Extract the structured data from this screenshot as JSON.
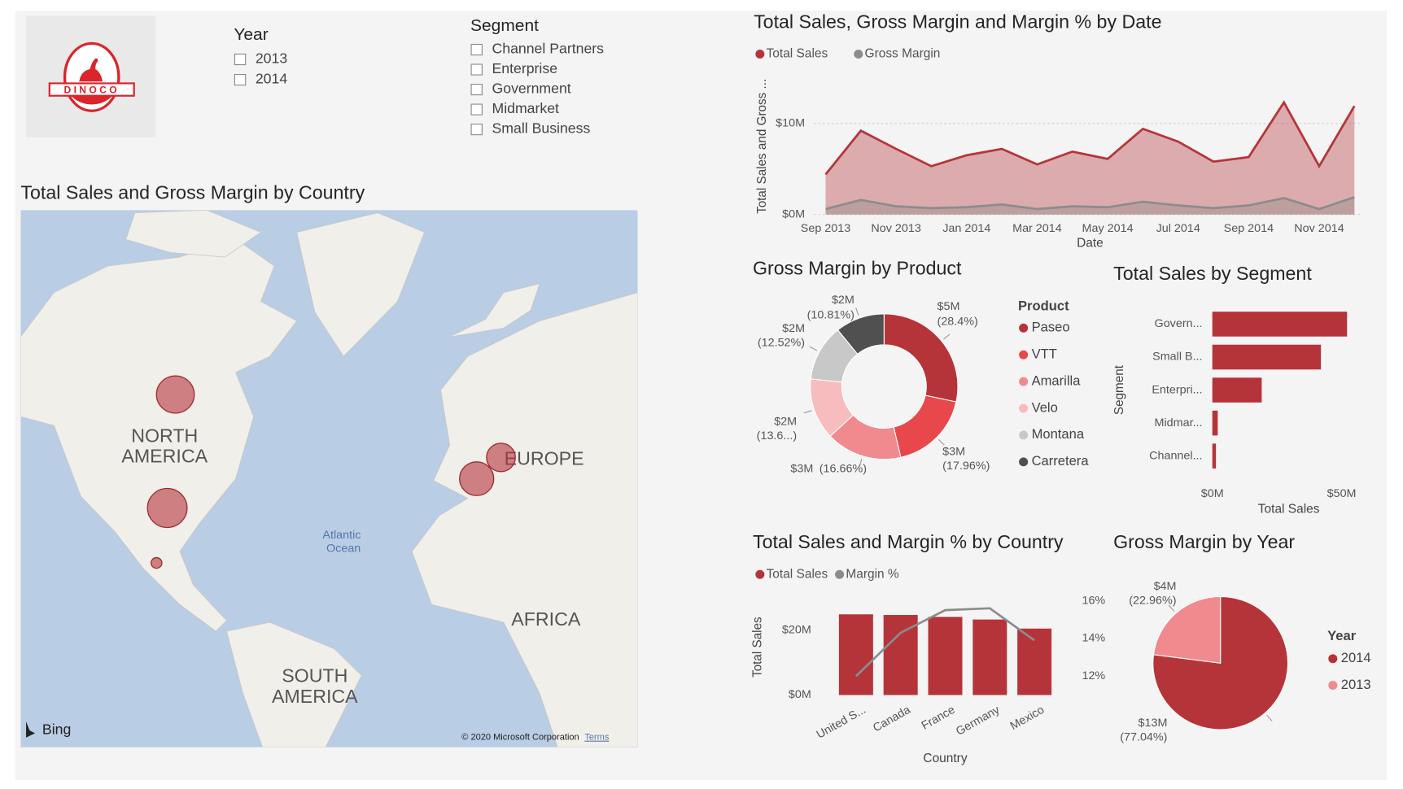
{
  "logo": {
    "text": "DINOCO"
  },
  "slicers": [
    {
      "title": "Year",
      "items": [
        "2013",
        "2014"
      ]
    },
    {
      "title": "Segment",
      "items": [
        "Channel Partners",
        "Enterprise",
        "Government",
        "Midmarket",
        "Small Business"
      ]
    }
  ],
  "map": {
    "title": "Total Sales and Gross Margin by Country",
    "regions": [
      [
        "NORTH",
        "AMERICA"
      ],
      [
        "EUROPE"
      ],
      [
        "AFRICA"
      ],
      [
        "SOUTH",
        "AMERICA"
      ]
    ],
    "ocean": [
      "Atlantic",
      "Ocean"
    ],
    "provider": "Bing",
    "copyright": "© 2020 Microsoft Corporation",
    "terms": "Terms"
  },
  "chart_data": [
    {
      "type": "area",
      "title": "Total Sales, Gross Margin and Margin % by Date",
      "xlabel": "Date",
      "ylabel": "Total Sales and Gross ...",
      "x": [
        "2013-09",
        "2013-10",
        "2013-11",
        "2013-12",
        "2014-01",
        "2014-02",
        "2014-03",
        "2014-04",
        "2014-05",
        "2014-06",
        "2014-07",
        "2014-08",
        "2014-09",
        "2014-10",
        "2014-11",
        "2014-12"
      ],
      "xticks": [
        {
          "value": "2013-09",
          "label": "Sep 2013"
        },
        {
          "value": "2013-11",
          "label": "Nov 2013"
        },
        {
          "value": "2014-01",
          "label": "Jan 2014"
        },
        {
          "value": "2014-03",
          "label": "Mar 2014"
        },
        {
          "value": "2014-05",
          "label": "May 2014"
        },
        {
          "value": "2014-07",
          "label": "Jul 2014"
        },
        {
          "value": "2014-09",
          "label": "Sep 2014"
        },
        {
          "value": "2014-11",
          "label": "Nov 2014"
        }
      ],
      "ylim": [
        0,
        14
      ],
      "yticks": [
        {
          "value": 0,
          "label": "$0M"
        },
        {
          "value": 10,
          "label": "$10M"
        }
      ],
      "grid": true,
      "series": [
        {
          "name": "Total Sales",
          "color": "#b5343a",
          "values": [
            4.4,
            9.2,
            7.2,
            5.3,
            6.5,
            7.2,
            5.5,
            6.9,
            6.1,
            9.4,
            8.0,
            5.8,
            6.3,
            12.3,
            5.3,
            11.9
          ]
        },
        {
          "name": "Gross Margin",
          "color": "#8c8c8c",
          "values": [
            0.6,
            1.6,
            0.9,
            0.7,
            0.8,
            1.1,
            0.6,
            0.9,
            0.8,
            1.4,
            1.0,
            0.7,
            1.0,
            1.8,
            0.6,
            1.9
          ]
        }
      ]
    },
    {
      "type": "donut",
      "title": "Gross Margin by Product",
      "legend_title": "Product",
      "categories": [
        "Paseo",
        "VTT",
        "Amarilla",
        "Velo",
        "Montana",
        "Carretera"
      ],
      "values": [
        28.4,
        17.96,
        16.66,
        13.65,
        12.52,
        10.81
      ],
      "value_labels": [
        [
          "$5M",
          "(28.4%)"
        ],
        [
          "$3M",
          "(17.96%)"
        ],
        [
          "$3M",
          "(16.66%)"
        ],
        [
          "$2M",
          "(13.6...)"
        ],
        [
          "$2M",
          "(12.52%)"
        ],
        [
          "$2M",
          "(10.81%)"
        ]
      ],
      "colors": [
        "#b5343a",
        "#e8474c",
        "#f08a8e",
        "#f6bcbe",
        "#c8c8c8",
        "#505050"
      ]
    },
    {
      "type": "hbar",
      "title": "Total Sales by Segment",
      "xlabel": "Total Sales",
      "ylabel": "Segment",
      "categories": [
        "Govern...",
        "Small B...",
        "Enterpri...",
        "Midmar...",
        "Channel..."
      ],
      "values": [
        52.1,
        42.0,
        19.1,
        2.1,
        1.4
      ],
      "color": "#b5343a",
      "xlim": [
        0,
        56
      ],
      "xticks": [
        {
          "value": 0,
          "label": "$0M"
        },
        {
          "value": 50,
          "label": "$50M"
        }
      ]
    },
    {
      "type": "combo",
      "title": "Total Sales and Margin % by Country",
      "xlabel": "Country",
      "ylabel": "Total Sales",
      "categories": [
        "United S...",
        "Canada",
        "France",
        "Germany",
        "Mexico"
      ],
      "series": [
        {
          "name": "Total Sales",
          "color": "#b5343a",
          "values": [
            24.9,
            24.7,
            24.1,
            23.3,
            20.5
          ]
        },
        {
          "name": "Margin %",
          "color": "#8c8c8c",
          "axis": "y2",
          "values": [
            12.0,
            14.3,
            15.5,
            15.6,
            13.9
          ]
        }
      ],
      "ylim": [
        0,
        32
      ],
      "yticks": [
        {
          "value": 0,
          "label": "$0M"
        },
        {
          "value": 20,
          "label": "$20M"
        }
      ],
      "y2lim": [
        11,
        16.5
      ],
      "y2ticks": [
        {
          "value": 12,
          "label": "12%"
        },
        {
          "value": 14,
          "label": "14%"
        },
        {
          "value": 16,
          "label": "16%"
        }
      ]
    },
    {
      "type": "pie",
      "title": "Gross Margin by Year",
      "legend_title": "Year",
      "categories": [
        "2014",
        "2013"
      ],
      "values": [
        77.04,
        22.96
      ],
      "value_labels": [
        [
          "$13M",
          "(77.04%)"
        ],
        [
          "$4M",
          "(22.96%)"
        ]
      ],
      "colors": [
        "#b5343a",
        "#f08a8e"
      ]
    }
  ]
}
